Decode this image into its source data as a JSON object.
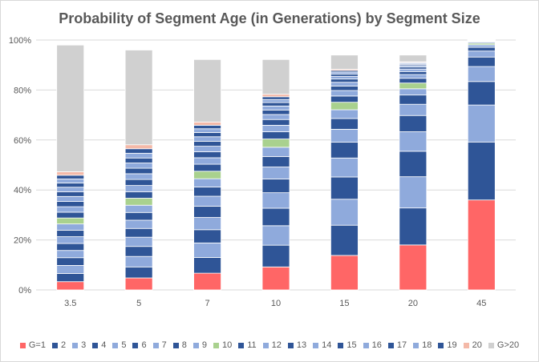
{
  "chart_data": {
    "type": "bar",
    "stacked": true,
    "title": "Probability of Segment Age (in Generations) by Segment Size",
    "xlabel": "",
    "ylabel": "",
    "ylim": [
      0,
      100
    ],
    "y_ticks": [
      "0%",
      "20%",
      "40%",
      "60%",
      "80%",
      "100%"
    ],
    "y_tick_values": [
      0,
      20,
      40,
      60,
      80,
      100
    ],
    "grid": true,
    "legend_position": "bottom",
    "categories": [
      "3.5",
      "5",
      "7",
      "10",
      "15",
      "20",
      "45"
    ],
    "series": [
      {
        "name": "G=1",
        "color": "#ff6666",
        "values": [
          3.3,
          4.8,
          6.7,
          9.2,
          13.8,
          18.0,
          36.0
        ]
      },
      {
        "name": "2",
        "color": "#2f5597",
        "values": [
          3.3,
          4.4,
          6.3,
          8.7,
          12.1,
          14.8,
          23.2
        ]
      },
      {
        "name": "3",
        "color": "#8faadc",
        "values": [
          3.2,
          4.2,
          5.8,
          7.8,
          10.4,
          12.5,
          14.8
        ]
      },
      {
        "name": "4",
        "color": "#2f5597",
        "values": [
          3.1,
          4.0,
          5.3,
          7.0,
          8.9,
          10.2,
          9.4
        ]
      },
      {
        "name": "5",
        "color": "#8faadc",
        "values": [
          2.9,
          3.7,
          4.9,
          6.2,
          7.6,
          7.8,
          6.0
        ]
      },
      {
        "name": "6",
        "color": "#2f5597",
        "values": [
          2.8,
          3.5,
          4.5,
          5.5,
          6.3,
          6.5,
          3.8
        ]
      },
      {
        "name": "7",
        "color": "#8faadc",
        "values": [
          2.7,
          3.3,
          4.0,
          4.8,
          5.2,
          4.5,
          2.4
        ]
      },
      {
        "name": "8",
        "color": "#2f5597",
        "values": [
          2.6,
          3.1,
          3.7,
          4.2,
          4.3,
          3.7,
          1.5
        ]
      },
      {
        "name": "9",
        "color": "#8faadc",
        "values": [
          2.5,
          2.9,
          3.3,
          3.7,
          3.5,
          2.5,
          1.0
        ]
      },
      {
        "name": "10",
        "color": "#a9d18e",
        "values": [
          2.4,
          2.8,
          3.0,
          3.3,
          3.0,
          2.3,
          0.6
        ]
      },
      {
        "name": "11",
        "color": "#2f5597",
        "values": [
          2.3,
          2.6,
          2.8,
          2.9,
          2.5,
          1.9,
          0.4
        ]
      },
      {
        "name": "12",
        "color": "#8faadc",
        "values": [
          2.2,
          2.5,
          2.6,
          2.6,
          2.2,
          1.5,
          0.3
        ]
      },
      {
        "name": "13",
        "color": "#2f5597",
        "values": [
          2.1,
          2.4,
          2.4,
          2.3,
          1.8,
          1.2,
          0.2
        ]
      },
      {
        "name": "14",
        "color": "#8faadc",
        "values": [
          2.0,
          2.3,
          2.2,
          2.0,
          1.5,
          1.0,
          0.15
        ]
      },
      {
        "name": "15",
        "color": "#2f5597",
        "values": [
          1.9,
          2.2,
          2.0,
          1.8,
          1.3,
          0.8,
          0.1
        ]
      },
      {
        "name": "16",
        "color": "#8faadc",
        "values": [
          1.8,
          2.1,
          1.8,
          1.6,
          1.1,
          0.6,
          0.1
        ]
      },
      {
        "name": "17",
        "color": "#2f5597",
        "values": [
          1.7,
          2.0,
          1.7,
          1.4,
          0.9,
          0.5,
          0.05
        ]
      },
      {
        "name": "18",
        "color": "#8faadc",
        "values": [
          1.6,
          1.9,
          1.5,
          1.2,
          0.8,
          0.4,
          0.05
        ]
      },
      {
        "name": "19",
        "color": "#2f5597",
        "values": [
          1.5,
          1.8,
          1.4,
          1.1,
          0.6,
          0.3,
          0.05
        ]
      },
      {
        "name": "20",
        "color": "#f4b9a8",
        "values": [
          1.4,
          1.6,
          1.3,
          1.0,
          0.5,
          0.3,
          0.05
        ]
      },
      {
        "name": "G>20",
        "color": "#d0d0d0",
        "values": [
          50.7,
          37.9,
          25.0,
          13.9,
          5.7,
          2.7,
          0.2
        ]
      }
    ]
  }
}
